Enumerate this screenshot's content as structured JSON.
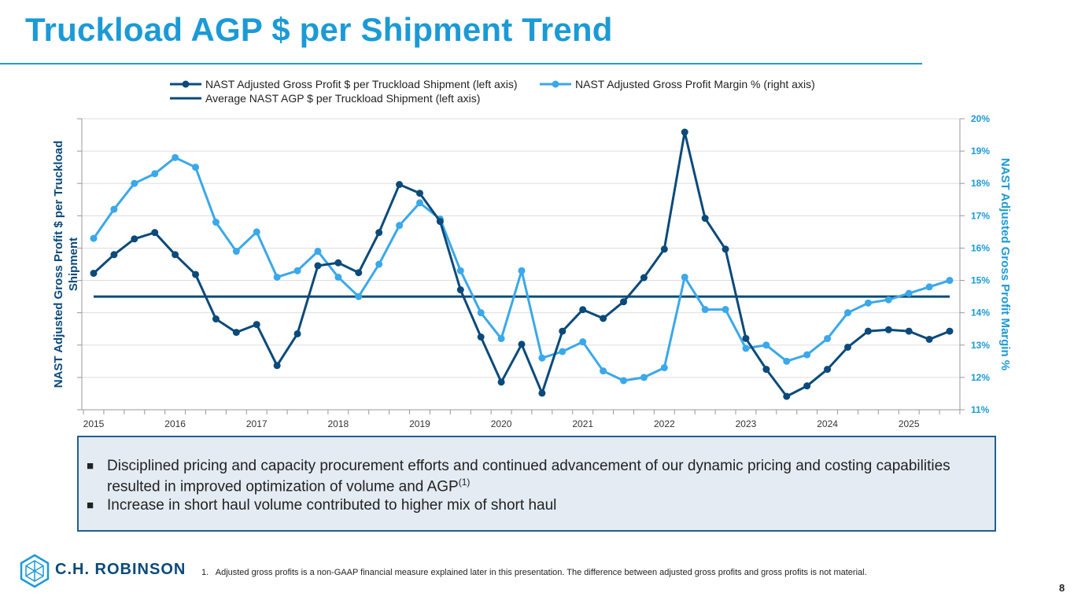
{
  "page": {
    "title": "Truckload AGP $ per Shipment Trend",
    "page_number": "8",
    "footnote": "1.   Adjusted gross profits is a non-GAAP financial measure explained later in this presentation. The difference between adjusted gross profits and gross profits is not material.",
    "logo_text": "C.H. ROBINSON"
  },
  "callout": {
    "bullets": [
      {
        "text": "Disciplined pricing and capacity procurement efforts and continued advancement of our dynamic pricing and costing capabilities resulted in improved optimization of volume and AGP",
        "sup": "(1)"
      },
      {
        "text": "Increase in short haul volume contributed to higher mix of short haul",
        "sup": ""
      }
    ],
    "bullet_glyph": "■"
  },
  "chart_data": {
    "type": "line",
    "title": "",
    "ylabel": "NAST Adjusted Gross Profit $ per Truckload Shipment",
    "y2label": "NAST Adjusted Gross Profit Margin %",
    "xlabel": "",
    "x_tick_labels": [
      "2015",
      "2016",
      "2017",
      "2018",
      "2019",
      "2020",
      "2021",
      "2022",
      "2023",
      "2024",
      "2025"
    ],
    "quarters_per_year": 4,
    "y_left_range": [
      0,
      100
    ],
    "y_left_unlabeled": true,
    "y_right_range": [
      11,
      20
    ],
    "y_right_ticks": [
      "11%",
      "12%",
      "13%",
      "14%",
      "15%",
      "16%",
      "17%",
      "18%",
      "19%",
      "20%"
    ],
    "grid": true,
    "legend_position": "top",
    "series": [
      {
        "name": "NAST Adjusted Gross Profit $ per Truckload Shipment (left axis)",
        "axis": "left",
        "color": "#0b4a7a",
        "marker": true,
        "values": [
          46.9,
          53.3,
          58.7,
          60.9,
          53.3,
          46.5,
          31.2,
          26.6,
          29.3,
          15.2,
          26.1,
          49.5,
          50.5,
          47.1,
          60.9,
          77.4,
          74.4,
          64.7,
          41.2,
          25.0,
          9.5,
          22.5,
          5.7,
          27.0,
          34.4,
          31.4,
          37.1,
          45.4,
          55.2,
          95.4,
          65.8,
          55.2,
          24.5,
          13.9,
          4.6,
          8.2,
          13.9,
          21.5,
          27.0,
          27.5,
          27.0,
          24.2,
          27.0
        ]
      },
      {
        "name": "NAST Adjusted Gross Profit Margin % (right axis)",
        "axis": "right",
        "color": "#3aa8ea",
        "marker": true,
        "values": [
          16.3,
          17.2,
          18.0,
          18.3,
          18.8,
          18.5,
          16.8,
          15.9,
          16.5,
          15.1,
          15.3,
          15.9,
          15.1,
          14.5,
          15.5,
          16.7,
          17.4,
          16.9,
          15.3,
          14.0,
          13.2,
          15.3,
          12.6,
          12.8,
          13.1,
          12.2,
          11.9,
          12.0,
          12.3,
          15.1,
          14.1,
          14.1,
          12.9,
          13.0,
          12.5,
          12.7,
          13.2,
          14.0,
          14.3,
          14.4,
          14.6,
          14.8,
          15.0
        ]
      },
      {
        "name": "Average NAST AGP $ per Truckload Shipment (left axis)",
        "axis": "left",
        "color": "#0b4a7a",
        "marker": false,
        "value": 38.9
      }
    ]
  }
}
